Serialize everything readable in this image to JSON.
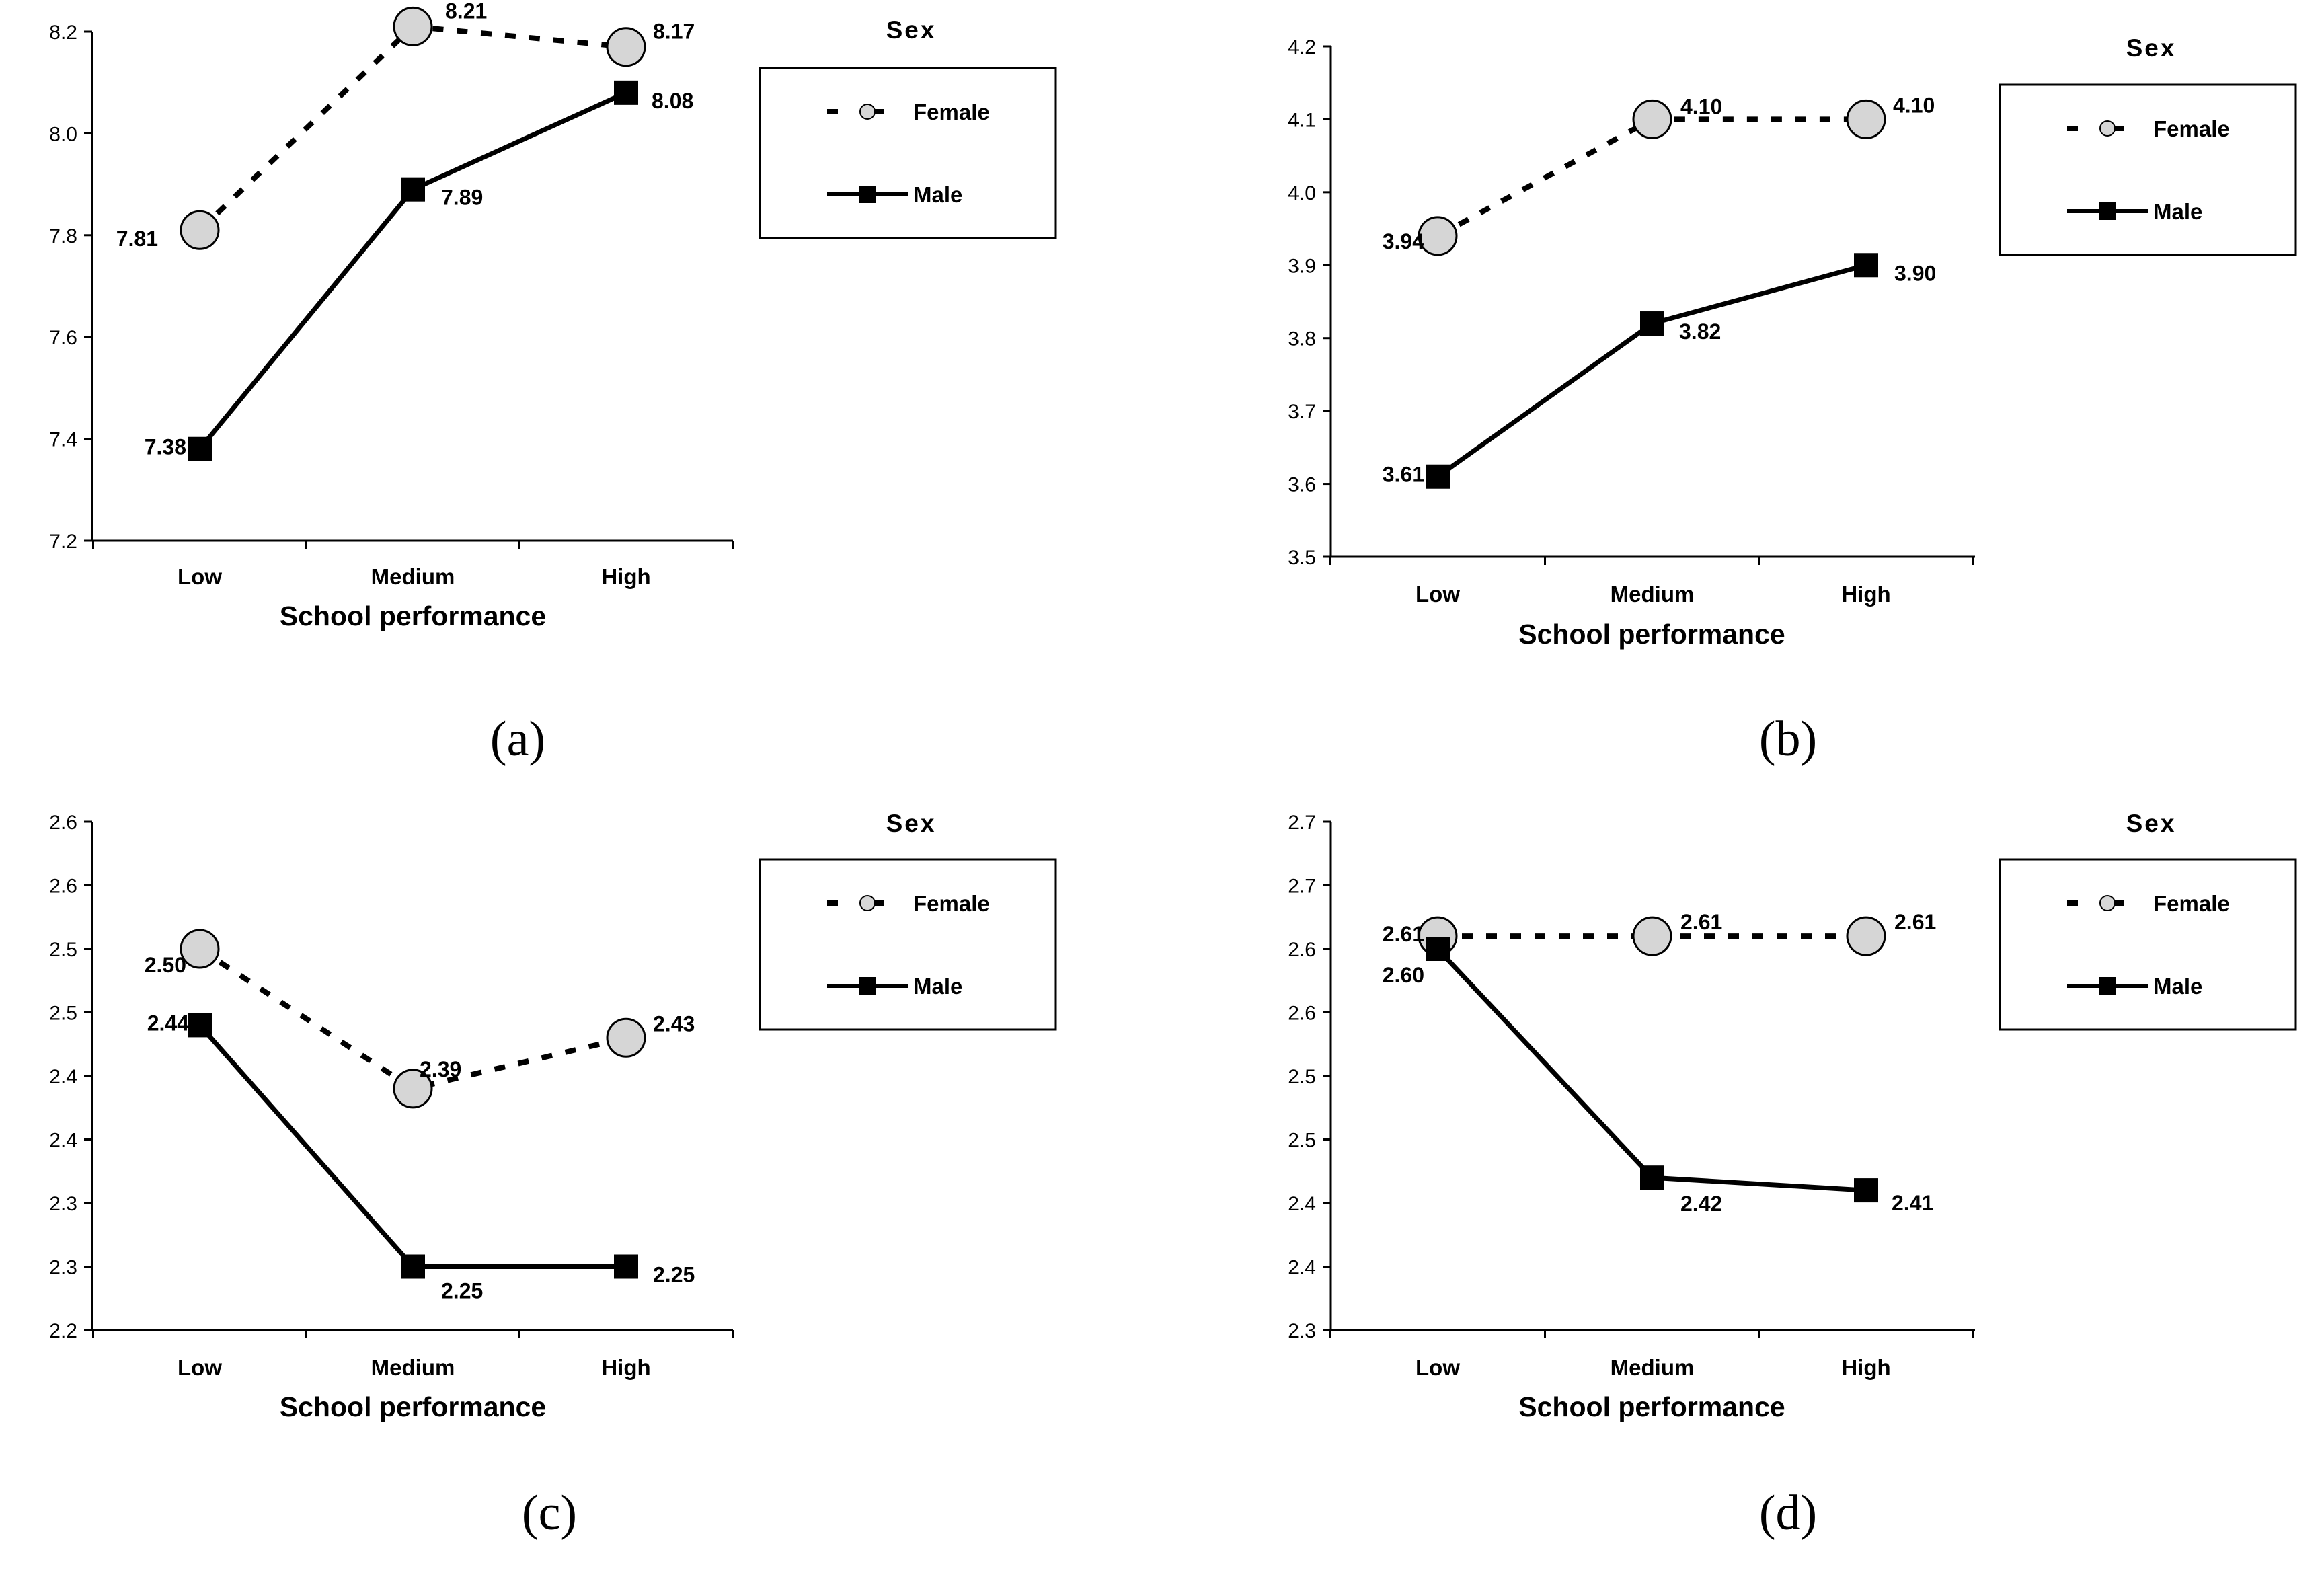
{
  "chart_data": [
    {
      "type": "line",
      "panel_label": "(a)",
      "xlabel": "School performance",
      "ylabel": "",
      "categories": [
        "Low",
        "Medium",
        "High"
      ],
      "ylim": [
        7.2,
        8.2
      ],
      "yticks": [
        "7.2",
        "7.4",
        "7.6",
        "7.8",
        "8.0",
        "8.2"
      ],
      "legend_title": "Sex",
      "series": [
        {
          "name": "Female",
          "values": [
            7.81,
            8.21,
            8.17
          ],
          "labels": [
            "7.81",
            "8.21",
            "8.17"
          ],
          "style": "dashed",
          "marker": "circle"
        },
        {
          "name": "Male",
          "values": [
            7.38,
            7.89,
            8.08
          ],
          "labels": [
            "7.38",
            "7.89",
            "8.08"
          ],
          "style": "solid",
          "marker": "square"
        }
      ]
    },
    {
      "type": "line",
      "panel_label": "(b)",
      "xlabel": "School performance",
      "ylabel": "",
      "categories": [
        "Low",
        "Medium",
        "High"
      ],
      "ylim": [
        3.5,
        4.2
      ],
      "yticks": [
        "3.5",
        "3.6",
        "3.7",
        "3.8",
        "3.9",
        "4.0",
        "4.1",
        "4.2"
      ],
      "legend_title": "Sex",
      "series": [
        {
          "name": "Female",
          "values": [
            3.94,
            4.1,
            4.1
          ],
          "labels": [
            "3.94",
            "4.10",
            "4.10"
          ],
          "style": "dashed",
          "marker": "circle"
        },
        {
          "name": "Male",
          "values": [
            3.61,
            3.82,
            3.9
          ],
          "labels": [
            "3.61",
            "3.82",
            "3.90"
          ],
          "style": "solid",
          "marker": "square"
        }
      ]
    },
    {
      "type": "line",
      "panel_label": "(c)",
      "xlabel": "School performance",
      "ylabel": "",
      "categories": [
        "Low",
        "Medium",
        "High"
      ],
      "ylim": [
        2.2,
        2.6
      ],
      "yticks": [
        "2.2",
        "2.3",
        "2.3",
        "2.4",
        "2.4",
        "2.5",
        "2.5",
        "2.6",
        "2.6"
      ],
      "legend_title": "Sex",
      "series": [
        {
          "name": "Female",
          "values": [
            2.5,
            2.39,
            2.43
          ],
          "labels": [
            "2.50",
            "2.39",
            "2.43"
          ],
          "style": "dashed",
          "marker": "circle"
        },
        {
          "name": "Male",
          "values": [
            2.44,
            2.25,
            2.25
          ],
          "labels": [
            "2.44",
            "2.25",
            "2.25"
          ],
          "style": "solid",
          "marker": "square"
        }
      ]
    },
    {
      "type": "line",
      "panel_label": "(d)",
      "xlabel": "School performance",
      "ylabel": "",
      "categories": [
        "Low",
        "Medium",
        "High"
      ],
      "ylim": [
        2.3,
        2.7
      ],
      "yticks": [
        "2.3",
        "2.4",
        "2.4",
        "2.5",
        "2.5",
        "2.6",
        "2.6",
        "2.7",
        "2.7"
      ],
      "legend_title": "Sex",
      "series": [
        {
          "name": "Female",
          "values": [
            2.61,
            2.61,
            2.61
          ],
          "labels": [
            "2.61",
            "2.61",
            "2.61"
          ],
          "style": "dashed",
          "marker": "circle"
        },
        {
          "name": "Male",
          "values": [
            2.6,
            2.42,
            2.41
          ],
          "labels": [
            "2.60",
            "2.42",
            "2.41"
          ],
          "style": "solid",
          "marker": "square"
        }
      ]
    }
  ],
  "colors": {
    "marker_fill": "#d6d6d6",
    "line": "#000000",
    "axis": "#000000"
  }
}
